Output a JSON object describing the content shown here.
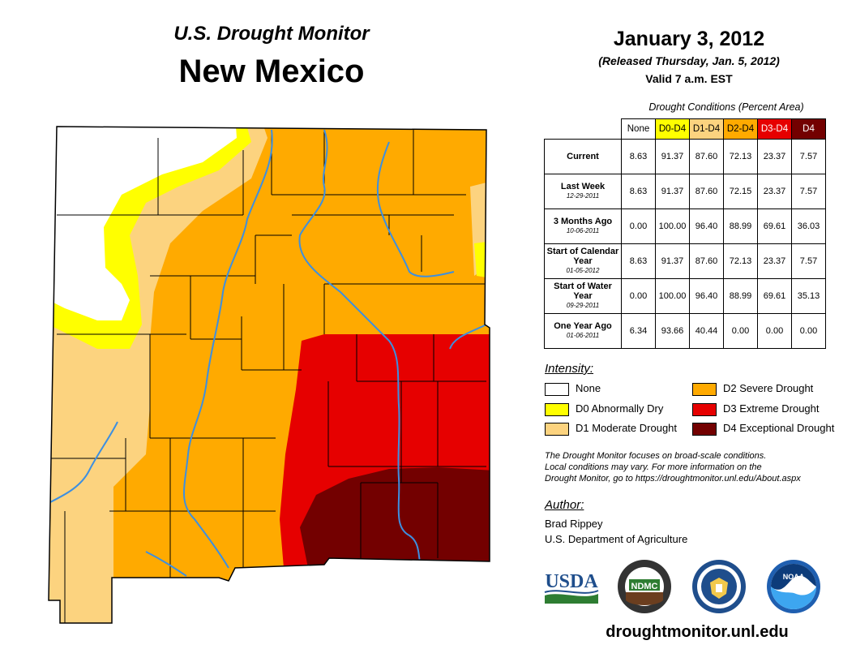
{
  "header": {
    "subtitle": "U.S. Drought Monitor",
    "state": "New Mexico"
  },
  "date": {
    "main": "January 3, 2012",
    "released": "(Released Thursday, Jan. 5, 2012)",
    "valid": "Valid 7 a.m. EST"
  },
  "table": {
    "caption": "Drought Conditions (Percent Area)",
    "columns": [
      {
        "label": "None",
        "color": "#ffffff",
        "text_color": "#000000"
      },
      {
        "label": "D0-D4",
        "color": "#ffff00",
        "text_color": "#000000"
      },
      {
        "label": "D1-D4",
        "color": "#fcd37f",
        "text_color": "#000000"
      },
      {
        "label": "D2-D4",
        "color": "#ffaa00",
        "text_color": "#000000"
      },
      {
        "label": "D3-D4",
        "color": "#e60000",
        "text_color": "#ffffff"
      },
      {
        "label": "D4",
        "color": "#730000",
        "text_color": "#ffffff"
      }
    ],
    "rows": [
      {
        "label": "Current",
        "date": "",
        "values": [
          "8.63",
          "91.37",
          "87.60",
          "72.13",
          "23.37",
          "7.57"
        ]
      },
      {
        "label": "Last Week",
        "date": "12-29-2011",
        "values": [
          "8.63",
          "91.37",
          "87.60",
          "72.15",
          "23.37",
          "7.57"
        ]
      },
      {
        "label": "3 Months Ago",
        "date": "10-06-2011",
        "values": [
          "0.00",
          "100.00",
          "96.40",
          "88.99",
          "69.61",
          "36.03"
        ]
      },
      {
        "label": "Start of Calendar Year",
        "date": "01-05-2012",
        "values": [
          "8.63",
          "91.37",
          "87.60",
          "72.13",
          "23.37",
          "7.57"
        ]
      },
      {
        "label": "Start of Water Year",
        "date": "09-29-2011",
        "values": [
          "0.00",
          "100.00",
          "96.40",
          "88.99",
          "69.61",
          "35.13"
        ]
      },
      {
        "label": "One Year Ago",
        "date": "01-06-2011",
        "values": [
          "6.34",
          "93.66",
          "40.44",
          "0.00",
          "0.00",
          "0.00"
        ]
      }
    ]
  },
  "legend": {
    "title": "Intensity:",
    "items": [
      {
        "label": "None",
        "color": "#ffffff"
      },
      {
        "label": "D0 Abnormally Dry",
        "color": "#ffff00"
      },
      {
        "label": "D1 Moderate Drought",
        "color": "#fcd37f"
      },
      {
        "label": "D2 Severe Drought",
        "color": "#ffaa00"
      },
      {
        "label": "D3 Extreme Drought",
        "color": "#e60000"
      },
      {
        "label": "D4 Exceptional Drought",
        "color": "#730000"
      }
    ]
  },
  "note": {
    "line1": "The Drought Monitor focuses on broad-scale conditions.",
    "line2": "Local conditions may vary. For more information on the",
    "line3": "Drought Monitor, go to https://droughtmonitor.unl.edu/About.aspx"
  },
  "author": {
    "label": "Author:",
    "name": "Brad Rippey",
    "org": "U.S. Department of Agriculture"
  },
  "logos": {
    "usda": "USDA",
    "ndmc": "NDMC",
    "noaa": "NOAA"
  },
  "website": "droughtmonitor.unl.edu",
  "map": {
    "colors": {
      "none": "#ffffff",
      "d0": "#ffff00",
      "d1": "#fcd37f",
      "d2": "#ffaa00",
      "d3": "#e60000",
      "d4": "#730000",
      "river": "#3d8fe0",
      "county": "#000000"
    }
  }
}
